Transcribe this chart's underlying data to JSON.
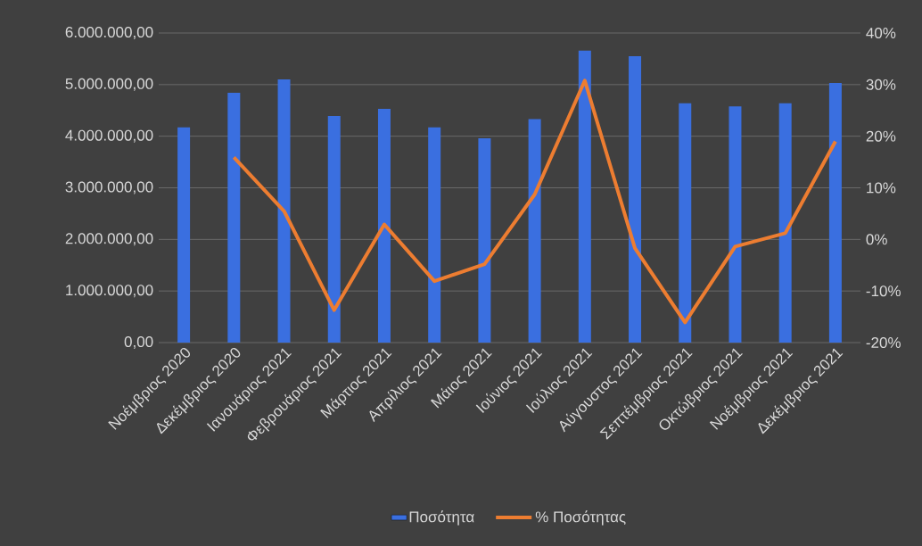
{
  "chart_data": {
    "type": "bar",
    "categories": [
      "Νοέμβριος 2020",
      "Δεκέμβριος 2020",
      "Ιανουάριος 2021",
      "Φεβρουάριος 2021",
      "Μάρτιος 2021",
      "Απρίλιος 2021",
      "Μάιος 2021",
      "Ιούνιος 2021",
      "Ιούλιος 2021",
      "Αύγουστος 2021",
      "Σεπτέμβριος 2021",
      "Οκτώβριος 2021",
      "Νοέμβριος 2021",
      "Δεκέμβριος 2021"
    ],
    "series": [
      {
        "name": "Ποσότητα",
        "color": "#3a6fe0",
        "values": [
          4170000,
          4840000,
          5100000,
          4390000,
          4530000,
          4170000,
          3960000,
          4330000,
          5660000,
          5550000,
          4640000,
          4580000,
          4640000,
          5030000
        ]
      },
      {
        "name": "% Ποσότητας",
        "type": "line",
        "axis": "y2",
        "color": "#ed7d31",
        "values": [
          null,
          15.9,
          5.5,
          -13.7,
          2.9,
          -8.1,
          -4.8,
          8.7,
          30.8,
          -1.7,
          -16.1,
          -1.4,
          1.2,
          19.0
        ]
      }
    ],
    "ylim": [
      0,
      6000000
    ],
    "yticks": [
      {
        "value": 0,
        "label": "0,00"
      },
      {
        "value": 1000000,
        "label": "1.000.000,00"
      },
      {
        "value": 2000000,
        "label": "2.000.000,00"
      },
      {
        "value": 3000000,
        "label": "3.000.000,00"
      },
      {
        "value": 4000000,
        "label": "4.000.000,00"
      },
      {
        "value": 5000000,
        "label": "5.000.000,00"
      },
      {
        "value": 6000000,
        "label": "6.000.000,00"
      }
    ],
    "y2lim": [
      -20,
      40
    ],
    "y2ticks": [
      {
        "value": -20,
        "label": "-20%"
      },
      {
        "value": -10,
        "label": "-10%"
      },
      {
        "value": 0,
        "label": "0%"
      },
      {
        "value": 10,
        "label": "10%"
      },
      {
        "value": 20,
        "label": "20%"
      },
      {
        "value": 30,
        "label": "30%"
      },
      {
        "value": 40,
        "label": "40%"
      }
    ],
    "grid": "y",
    "legend": "bottom"
  }
}
